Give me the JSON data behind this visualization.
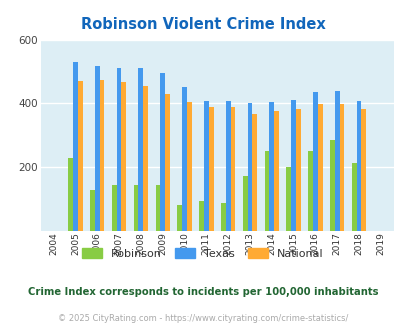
{
  "title": "Robinson Violent Crime Index",
  "years": [
    2004,
    2005,
    2006,
    2007,
    2008,
    2009,
    2010,
    2011,
    2012,
    2013,
    2014,
    2015,
    2016,
    2017,
    2018,
    2019
  ],
  "robinson": [
    0,
    228,
    130,
    145,
    145,
    143,
    80,
    95,
    88,
    172,
    252,
    200,
    250,
    285,
    213,
    0
  ],
  "texas": [
    0,
    530,
    518,
    510,
    510,
    495,
    452,
    408,
    408,
    402,
    405,
    410,
    437,
    440,
    408,
    0
  ],
  "national": [
    0,
    469,
    473,
    466,
    456,
    429,
    404,
    389,
    390,
    368,
    376,
    383,
    398,
    397,
    383,
    0
  ],
  "robinson_color": "#88cc44",
  "texas_color": "#4499ee",
  "national_color": "#ffaa33",
  "bg_color": "#ddeef5",
  "title_color": "#1166bb",
  "ylim": [
    0,
    600
  ],
  "yticks": [
    0,
    200,
    400,
    600
  ],
  "subtitle": "Crime Index corresponds to incidents per 100,000 inhabitants",
  "subtitle_color": "#226633",
  "copyright": "© 2025 CityRating.com - https://www.cityrating.com/crime-statistics/",
  "copyright_color": "#aaaaaa",
  "bar_width": 0.22,
  "grid_color": "#ffffff",
  "legend_labels": [
    "Robinson",
    "Texas",
    "National"
  ]
}
